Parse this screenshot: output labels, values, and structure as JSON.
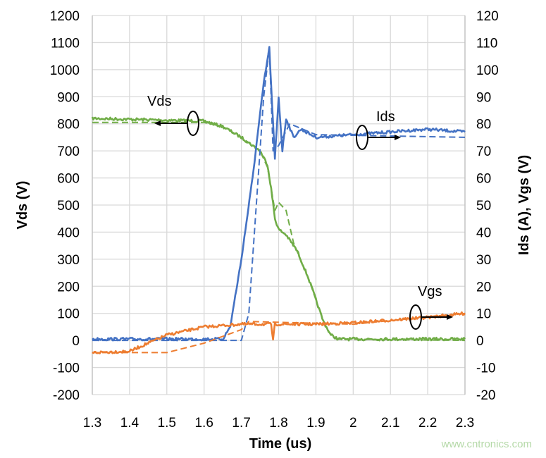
{
  "chart_data": {
    "type": "line",
    "xlabel": "Time (us)",
    "ylabel_left": "Vds (V)",
    "ylabel_right": "Ids (A), Vgs (V)",
    "xlim": [
      1.3,
      2.3
    ],
    "ylim_left": [
      -200,
      1200
    ],
    "ylim_right": [
      -20,
      120
    ],
    "x_ticks": [
      "1.3",
      "1.4",
      "1.5",
      "1.6",
      "1.7",
      "1.8",
      "1.9",
      "2",
      "2.1",
      "2.2",
      "2.3"
    ],
    "y_ticks_left": [
      "-200",
      "-100",
      "0",
      "100",
      "200",
      "300",
      "400",
      "500",
      "600",
      "700",
      "800",
      "900",
      "1000",
      "1100",
      "1200"
    ],
    "y_ticks_right": [
      "-20",
      "-10",
      "0",
      "10",
      "20",
      "30",
      "40",
      "50",
      "60",
      "70",
      "80",
      "90",
      "100",
      "110",
      "120"
    ],
    "grid": true,
    "colors": {
      "Vds": "#70ad47",
      "Ids": "#4472c4",
      "Vgs": "#ed7d31"
    },
    "annotations": [
      {
        "text": "Vds",
        "axis": "left",
        "arrow": "left"
      },
      {
        "text": "Ids",
        "axis": "right",
        "arrow": "right"
      },
      {
        "text": "Vgs",
        "axis": "right",
        "arrow": "right"
      }
    ],
    "series": [
      {
        "label": "Vds",
        "style": "solid",
        "axis": "left",
        "x": [
          1.3,
          1.6,
          1.65,
          1.7,
          1.75,
          1.77,
          1.78,
          1.79,
          1.8,
          1.82,
          1.85,
          1.88,
          1.9,
          1.92,
          1.94,
          1.96,
          2.3
        ],
        "y": [
          820,
          810,
          790,
          750,
          700,
          650,
          560,
          450,
          410,
          390,
          330,
          230,
          150,
          70,
          20,
          5,
          5
        ]
      },
      {
        "label": "Vds",
        "style": "dashed",
        "axis": "left",
        "x": [
          1.3,
          1.6,
          1.65,
          1.7,
          1.75,
          1.77,
          1.78,
          1.79,
          1.8,
          1.82,
          1.84,
          1.88,
          1.9,
          1.92,
          1.94,
          1.96,
          2.3
        ],
        "y": [
          805,
          805,
          790,
          750,
          700,
          640,
          560,
          480,
          510,
          480,
          360,
          230,
          150,
          70,
          20,
          5,
          0
        ]
      },
      {
        "label": "Ids",
        "style": "solid",
        "axis": "right",
        "x": [
          1.3,
          1.65,
          1.67,
          1.7,
          1.73,
          1.76,
          1.775,
          1.785,
          1.79,
          1.8,
          1.81,
          1.82,
          1.84,
          1.86,
          1.9,
          2.0,
          2.1,
          2.2,
          2.3
        ],
        "y": [
          0.5,
          0.5,
          5,
          30,
          60,
          95,
          108,
          80,
          67,
          90,
          70,
          82,
          75,
          78,
          75,
          76,
          77,
          78,
          77
        ]
      },
      {
        "label": "Ids",
        "style": "dashed",
        "axis": "right",
        "x": [
          1.3,
          1.7,
          1.72,
          1.74,
          1.76,
          1.775,
          1.785,
          1.8,
          1.83,
          1.9,
          2.3
        ],
        "y": [
          0,
          0,
          10,
          50,
          90,
          108,
          70,
          72,
          80,
          76,
          75
        ]
      },
      {
        "label": "Vgs",
        "style": "solid",
        "axis": "right",
        "x": [
          1.3,
          1.4,
          1.45,
          1.5,
          1.6,
          1.7,
          1.78,
          1.785,
          1.79,
          1.9,
          2.0,
          2.1,
          2.2,
          2.3
        ],
        "y": [
          -4.5,
          -4,
          -1,
          2,
          5,
          6,
          6,
          0,
          6,
          6,
          6.5,
          7.5,
          8.5,
          10
        ]
      },
      {
        "label": "Vgs",
        "style": "dashed",
        "axis": "right",
        "x": [
          1.3,
          1.5,
          1.6,
          1.7,
          1.72,
          2.0,
          2.3
        ],
        "y": [
          -4.5,
          -4.5,
          -1,
          4,
          7,
          6,
          10
        ]
      }
    ]
  },
  "watermark": "www.cntronics.com"
}
